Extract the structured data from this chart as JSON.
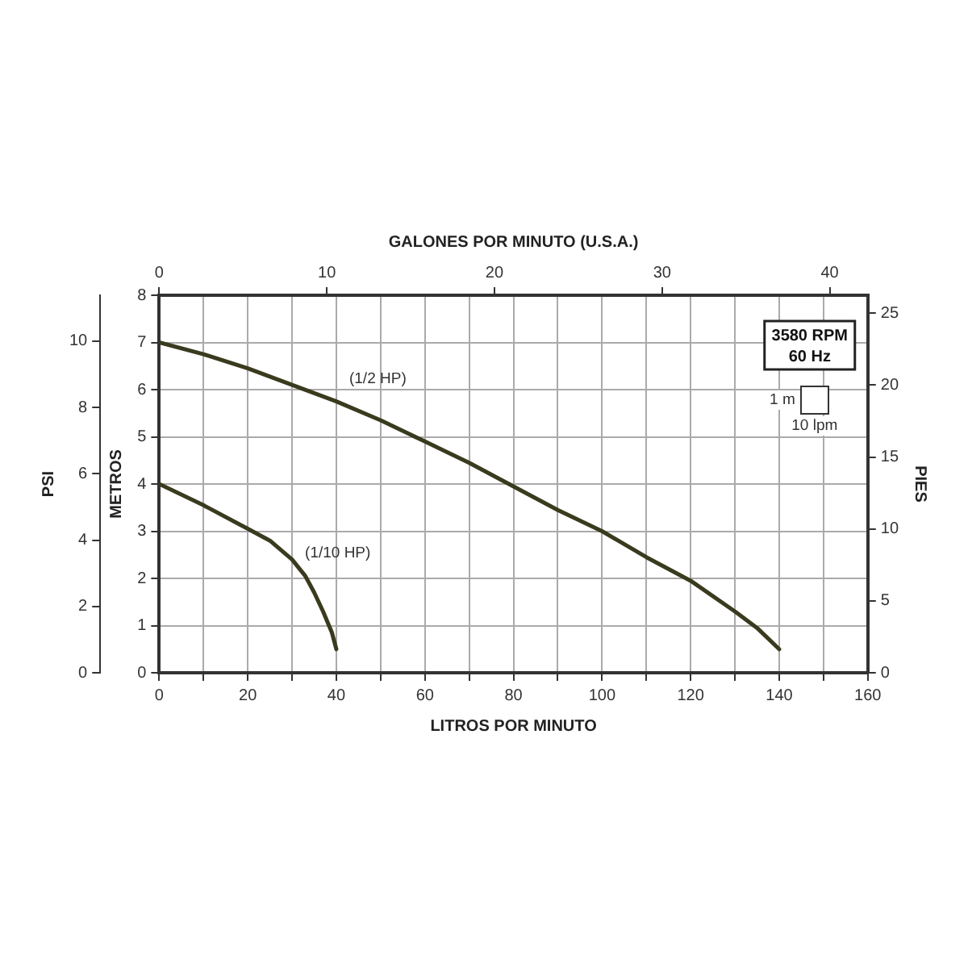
{
  "chart_data": {
    "type": "line",
    "xlabel": "LITROS POR MINUTO",
    "x2label": "GALONES POR MINUTO (U.S.A.)",
    "ylabel": "METROS",
    "y2label": "PIES",
    "y3label": "PSI",
    "xlim": [
      0,
      160
    ],
    "xticks": [
      0,
      {
        "value": 10,
        "label": null
      },
      20,
      {
        "value": 30,
        "label": null
      },
      40,
      {
        "value": 50,
        "label": null
      },
      60,
      {
        "value": 70,
        "label": null
      },
      80,
      {
        "value": 90,
        "label": null
      },
      100,
      {
        "value": 110,
        "label": null
      },
      120,
      {
        "value": 130,
        "label": null
      },
      140,
      {
        "value": 150,
        "label": null
      },
      160
    ],
    "x2lim": [
      0,
      42.27
    ],
    "x2ticks": [
      0,
      10,
      20,
      30,
      40
    ],
    "ylim": [
      0,
      8
    ],
    "yticks": [
      0,
      1,
      2,
      3,
      4,
      5,
      6,
      7,
      8
    ],
    "y2lim": [
      0,
      26.25
    ],
    "y2ticks": [
      0,
      5,
      10,
      15,
      20,
      25
    ],
    "y3lim": [
      0,
      11.38
    ],
    "y3ticks": [
      0,
      2,
      4,
      6,
      8,
      10
    ],
    "grid": true,
    "legend": false,
    "marker": "none",
    "line_style": "solid",
    "annotations": [
      "3580 RPM",
      "60 Hz",
      "1 m",
      "10 lpm"
    ],
    "series": [
      {
        "name": "(1/2 HP)",
        "color": "#3a3a1e",
        "x": [
          0,
          10,
          20,
          30,
          40,
          50,
          60,
          70,
          80,
          90,
          100,
          110,
          120,
          130,
          135,
          140
        ],
        "values": [
          7,
          6.75,
          6.45,
          6.1,
          5.75,
          5.35,
          4.9,
          4.45,
          3.95,
          3.45,
          3.0,
          2.45,
          1.95,
          1.3,
          0.95,
          0.5
        ]
      },
      {
        "name": "(1/10 HP)",
        "color": "#3a3a1e",
        "x": [
          0,
          10,
          20,
          25,
          30,
          33,
          35,
          37,
          39,
          40
        ],
        "values": [
          4,
          3.55,
          3.05,
          2.8,
          2.4,
          2.05,
          1.7,
          1.3,
          0.85,
          0.5
        ]
      }
    ]
  }
}
